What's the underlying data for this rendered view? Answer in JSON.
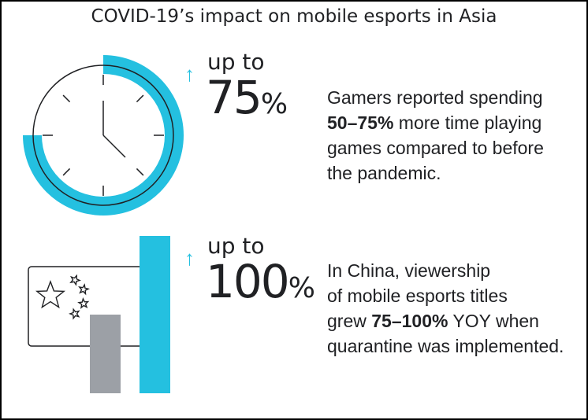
{
  "title": "COVID-19’s impact on mobile esports in Asia",
  "colors": {
    "accent": "#24c0e0",
    "gray_bar": "#9ca0a6",
    "text": "#202124"
  },
  "stat1": {
    "icon": "clock-icon",
    "arc_fraction": 0.75,
    "prefix": "up to",
    "value": "75",
    "unit": "%",
    "description": {
      "line1": "Gamers reported spending",
      "line2_bold": "50–75%",
      "line2_rest": " more time playing",
      "line3": "games compared to before",
      "line4": "the pandemic."
    }
  },
  "stat2": {
    "icon": "china-flag-icon",
    "bars": {
      "before": 0.5,
      "after": 1.0
    },
    "prefix": "up to",
    "value": "100",
    "unit": "%",
    "description": {
      "line1": "In China, viewership",
      "line2": "of mobile esports titles",
      "line3_pre": "grew ",
      "line3_bold": "75–100%",
      "line3_rest": " YOY when",
      "line4": "quarantine was implemented."
    }
  }
}
